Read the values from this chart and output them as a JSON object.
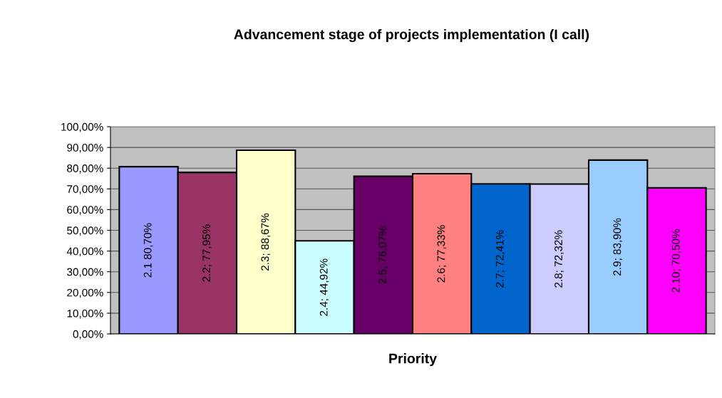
{
  "chart_data": {
    "type": "bar",
    "title": "Advancement stage of projects implementation (I call)",
    "xlabel": "Priority",
    "categories": [
      null,
      null,
      null,
      null,
      null,
      null,
      null,
      null,
      null,
      null
    ],
    "values": [
      80.7,
      77.95,
      88.67,
      44.92,
      76.07,
      77.33,
      72.41,
      72.32,
      83.9,
      70.5
    ],
    "colors": [
      "#9999ff",
      "#993366",
      "#ffffcc",
      "#ccffff",
      "#660066",
      "#ff8080",
      "#0066cc",
      "#ccccff",
      "#99ccff",
      "#ff00ff"
    ],
    "value_labels": [
      "2.1 80,70%",
      "2.2; 77,95%",
      "2.3; 88,67%",
      "2.4; 44,92%",
      "2.5; 76,07%",
      "2.6; 77,33%",
      "2.7; 72,41%",
      "2.8; 72,32%",
      "2.9; 83,90%",
      "2.10; 70,50%"
    ],
    "ylim": [
      0,
      100
    ],
    "yticks": [
      {
        "value": 0,
        "label": "0,00%"
      },
      {
        "value": 10,
        "label": "10,00%"
      },
      {
        "value": 20,
        "label": "20,00%"
      },
      {
        "value": 30,
        "label": "30,00%"
      },
      {
        "value": 40,
        "label": "40,00%"
      },
      {
        "value": 50,
        "label": "50,00%"
      },
      {
        "value": 60,
        "label": "60,00%"
      },
      {
        "value": 70,
        "label": "70,00%"
      },
      {
        "value": 80,
        "label": "80,00%"
      },
      {
        "value": 90,
        "label": "90,00%"
      },
      {
        "value": 100,
        "label": "100,00%"
      }
    ],
    "grid": "y",
    "legend": false
  }
}
